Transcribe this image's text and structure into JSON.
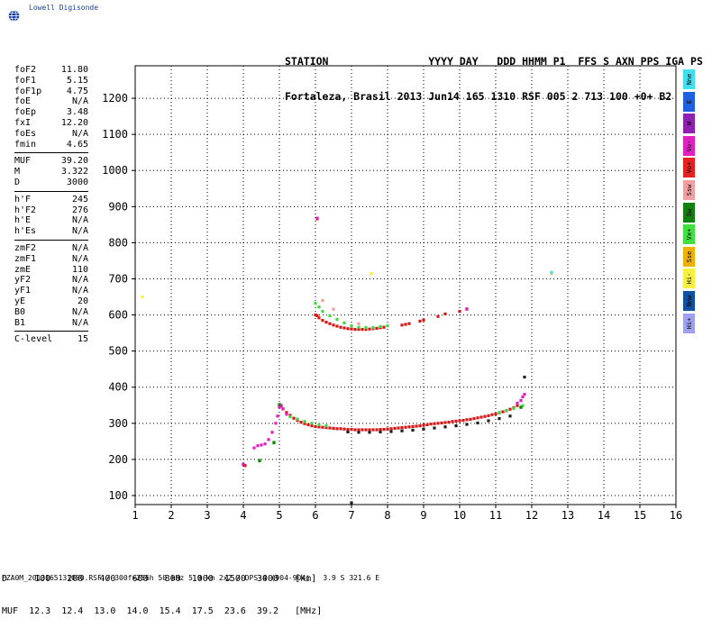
{
  "logo": {
    "text": "Lowell Digisonde",
    "icon": "globe-icon"
  },
  "header": {
    "line1": "STATION                YYYY DAY   DDD HHMM P1  FFS S AXN PPS IGA PS",
    "line2": "Fortaleza, Brasil 2013 Jun14 165 1310 RSF 005 2 713 100 +0+ B2"
  },
  "params": {
    "group1": [
      {
        "k": "foF2",
        "v": "11.80"
      },
      {
        "k": "foF1",
        "v": "5.15"
      },
      {
        "k": "foF1p",
        "v": "4.75"
      },
      {
        "k": "foE",
        "v": "N/A"
      },
      {
        "k": "foEp",
        "v": "3.48"
      },
      {
        "k": "fxI",
        "v": "12.20"
      },
      {
        "k": "foEs",
        "v": "N/A"
      },
      {
        "k": "fmin",
        "v": "4.65"
      }
    ],
    "group2": [
      {
        "k": "MUF",
        "v": "39.20"
      },
      {
        "k": "M",
        "v": "3.322"
      },
      {
        "k": "D",
        "v": "3000"
      }
    ],
    "group3": [
      {
        "k": "h'F",
        "v": "245"
      },
      {
        "k": "h'F2",
        "v": "276"
      },
      {
        "k": "h'E",
        "v": "N/A"
      },
      {
        "k": "h'Es",
        "v": "N/A"
      }
    ],
    "group4": [
      {
        "k": "zmF2",
        "v": "N/A"
      },
      {
        "k": "zmF1",
        "v": "N/A"
      },
      {
        "k": "zmE",
        "v": "110"
      },
      {
        "k": "yF2",
        "v": "N/A"
      },
      {
        "k": "yF1",
        "v": "N/A"
      },
      {
        "k": "yE",
        "v": "20"
      },
      {
        "k": "B0",
        "v": "N/A"
      },
      {
        "k": "B1",
        "v": "N/A"
      }
    ],
    "group5": [
      {
        "k": "C-level",
        "v": "15"
      }
    ]
  },
  "legend": [
    {
      "label": "Nne",
      "color": "#40e0f0"
    },
    {
      "label": "E",
      "color": "#2060e0"
    },
    {
      "label": "W",
      "color": "#9020b0"
    },
    {
      "label": "Vo-",
      "color": "#e020c0"
    },
    {
      "label": "Vo+",
      "color": "#e82020"
    },
    {
      "label": "Ssw",
      "color": "#f0a0a0"
    },
    {
      "label": "Sw",
      "color": "#108010"
    },
    {
      "label": "Vx+",
      "color": "#40e040"
    },
    {
      "label": "Sse",
      "color": "#f0b000"
    },
    {
      "label": "Hi-",
      "color": "#f8f040"
    },
    {
      "label": "Nnw",
      "color": "#1050a0"
    },
    {
      "label": "Hi+",
      "color": "#a0a0f0"
    }
  ],
  "muf_table": {
    "line1": "D     100   200   400   600   800  1000  1500  3000   [km]",
    "line2": "MUF  12.3  12.4  13.0  14.0  15.4  17.5  23.6  39.2   [MHz]"
  },
  "footer": "FZA0M_2013165131000.RSF / 300f×256h 50 kHz 5.0 km 2x2 / DPS-4 (904-904)   3.9 S 321.6 E",
  "chart_data": {
    "type": "scatter",
    "xlim": [
      1,
      16
    ],
    "ylim": [
      75,
      1290
    ],
    "x_ticks": [
      1,
      2,
      3,
      4,
      5,
      6,
      7,
      8,
      9,
      10,
      11,
      12,
      13,
      14,
      15,
      16
    ],
    "y_ticks": [
      100,
      200,
      300,
      400,
      500,
      600,
      700,
      800,
      900,
      1000,
      1100,
      1200
    ],
    "grid": true,
    "series": [
      {
        "name": "Vo+",
        "color": "#d81818",
        "points": [
          [
            4.0,
            186
          ],
          [
            4.05,
            183
          ],
          [
            5.0,
            350
          ],
          [
            5.05,
            348
          ],
          [
            5.1,
            340
          ],
          [
            5.2,
            330
          ],
          [
            5.3,
            322
          ],
          [
            5.4,
            314
          ],
          [
            5.5,
            308
          ],
          [
            5.6,
            303
          ],
          [
            5.7,
            299
          ],
          [
            5.8,
            296
          ],
          [
            5.9,
            293
          ],
          [
            6.0,
            291
          ],
          [
            6.1,
            290
          ],
          [
            6.2,
            289
          ],
          [
            6.3,
            288
          ],
          [
            6.4,
            287
          ],
          [
            6.5,
            286
          ],
          [
            6.6,
            285
          ],
          [
            6.7,
            285
          ],
          [
            6.8,
            284
          ],
          [
            6.9,
            283
          ],
          [
            7.0,
            283
          ],
          [
            7.1,
            282
          ],
          [
            7.2,
            282
          ],
          [
            7.3,
            282
          ],
          [
            7.4,
            282
          ],
          [
            7.5,
            282
          ],
          [
            7.6,
            282
          ],
          [
            7.7,
            282
          ],
          [
            7.8,
            283
          ],
          [
            7.9,
            283
          ],
          [
            8.0,
            284
          ],
          [
            8.1,
            285
          ],
          [
            8.2,
            286
          ],
          [
            8.3,
            287
          ],
          [
            8.4,
            288
          ],
          [
            8.5,
            289
          ],
          [
            8.6,
            290
          ],
          [
            8.7,
            291
          ],
          [
            8.8,
            292
          ],
          [
            8.9,
            293
          ],
          [
            9.0,
            295
          ],
          [
            9.1,
            296
          ],
          [
            9.2,
            298
          ],
          [
            9.3,
            299
          ],
          [
            9.4,
            300
          ],
          [
            9.5,
            301
          ],
          [
            9.6,
            302
          ],
          [
            9.7,
            303
          ],
          [
            9.8,
            305
          ],
          [
            9.9,
            306
          ],
          [
            10.0,
            307
          ],
          [
            10.1,
            308
          ],
          [
            10.2,
            310
          ],
          [
            10.3,
            311
          ],
          [
            10.4,
            313
          ],
          [
            10.5,
            315
          ],
          [
            10.6,
            317
          ],
          [
            10.7,
            319
          ],
          [
            10.8,
            321
          ],
          [
            10.9,
            324
          ],
          [
            11.0,
            326
          ],
          [
            11.1,
            329
          ],
          [
            11.2,
            332
          ],
          [
            11.3,
            335
          ],
          [
            11.4,
            339
          ],
          [
            11.5,
            343
          ],
          [
            11.6,
            349
          ],
          [
            6.0,
            600
          ],
          [
            6.05,
            598
          ],
          [
            6.1,
            592
          ],
          [
            6.2,
            585
          ],
          [
            6.3,
            580
          ],
          [
            6.4,
            576
          ],
          [
            6.5,
            572
          ],
          [
            6.6,
            569
          ],
          [
            6.7,
            566
          ],
          [
            6.8,
            564
          ],
          [
            6.9,
            562
          ],
          [
            7.0,
            561
          ],
          [
            7.1,
            560
          ],
          [
            7.2,
            560
          ],
          [
            7.3,
            560
          ],
          [
            7.4,
            560
          ],
          [
            7.5,
            561
          ],
          [
            7.6,
            562
          ],
          [
            7.7,
            563
          ],
          [
            7.8,
            565
          ],
          [
            7.9,
            566
          ],
          [
            8.4,
            572
          ],
          [
            8.5,
            574
          ],
          [
            8.6,
            576
          ],
          [
            8.9,
            583
          ],
          [
            9.0,
            586
          ],
          [
            9.4,
            596
          ],
          [
            9.6,
            603
          ],
          [
            10.0,
            610
          ],
          [
            10.2,
            617
          ],
          [
            6.05,
            866
          ],
          [
            7.8,
            565
          ]
        ]
      },
      {
        "name": "Vo-",
        "color": "#e020c0",
        "points": [
          [
            4.0,
            186
          ],
          [
            4.3,
            232
          ],
          [
            4.4,
            238
          ],
          [
            4.5,
            240
          ],
          [
            4.6,
            243
          ],
          [
            4.7,
            255
          ],
          [
            4.8,
            275
          ],
          [
            4.9,
            300
          ],
          [
            4.95,
            320
          ],
          [
            5.0,
            345
          ],
          [
            5.05,
            350
          ],
          [
            5.1,
            340
          ],
          [
            5.2,
            325
          ],
          [
            11.6,
            356
          ],
          [
            11.7,
            363
          ],
          [
            11.75,
            373
          ],
          [
            11.8,
            380
          ],
          [
            10.2,
            616
          ],
          [
            6.05,
            868
          ]
        ]
      },
      {
        "name": "Vx+",
        "color": "#40d840",
        "points": [
          [
            4.45,
            198
          ],
          [
            4.85,
            248
          ],
          [
            5.3,
            318
          ],
          [
            5.5,
            312
          ],
          [
            5.7,
            305
          ],
          [
            5.9,
            300
          ],
          [
            6.1,
            296
          ],
          [
            6.3,
            293
          ],
          [
            11.1,
            330
          ],
          [
            11.3,
            336
          ],
          [
            11.5,
            341
          ],
          [
            11.7,
            346
          ],
          [
            11.75,
            349
          ],
          [
            6.0,
            632
          ],
          [
            6.1,
            622
          ],
          [
            6.2,
            610
          ],
          [
            6.4,
            598
          ],
          [
            6.6,
            588
          ],
          [
            6.8,
            578
          ],
          [
            7.0,
            570
          ],
          [
            7.2,
            566
          ],
          [
            7.4,
            565
          ],
          [
            7.6,
            565
          ],
          [
            7.8,
            568
          ],
          [
            8.0,
            570
          ]
        ]
      },
      {
        "name": "Sw",
        "color": "#108010",
        "points": [
          [
            4.45,
            196
          ],
          [
            4.85,
            246
          ],
          [
            5.0,
            352
          ],
          [
            11.7,
            344
          ]
        ]
      },
      {
        "name": "Ssw",
        "color": "#f0a0a0",
        "points": [
          [
            6.2,
            640
          ],
          [
            6.5,
            616
          ],
          [
            7.2,
            576
          ]
        ]
      },
      {
        "name": "Sse",
        "color": "#f0b000",
        "points": [
          [
            12.55,
            716
          ]
        ]
      },
      {
        "name": "Hi-",
        "color": "#f8f040",
        "points": [
          [
            1.2,
            650
          ],
          [
            7.55,
            715
          ]
        ]
      },
      {
        "name": "Nne",
        "color": "#40e0f0",
        "points": [
          [
            12.55,
            718
          ]
        ]
      },
      {
        "name": "echo",
        "color": "#202020",
        "points": [
          [
            6.9,
            276
          ],
          [
            7.2,
            275
          ],
          [
            7.5,
            275
          ],
          [
            7.8,
            276
          ],
          [
            8.1,
            277
          ],
          [
            8.4,
            279
          ],
          [
            8.7,
            281
          ],
          [
            9.0,
            284
          ],
          [
            9.3,
            287
          ],
          [
            9.6,
            290
          ],
          [
            9.9,
            293
          ],
          [
            10.2,
            297
          ],
          [
            10.5,
            301
          ],
          [
            10.8,
            307
          ],
          [
            11.1,
            313
          ],
          [
            11.4,
            320
          ],
          [
            11.8,
            428
          ],
          [
            7.0,
            80
          ]
        ]
      }
    ]
  }
}
